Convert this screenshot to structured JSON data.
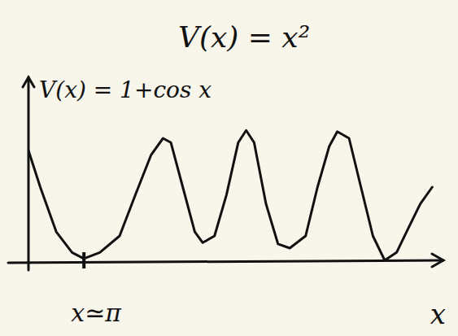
{
  "chart_data": {
    "type": "line",
    "title": "V(x) = x²",
    "y_label": "V(x) = 1+cos x",
    "x_label": "x",
    "x": [
      0,
      0.67,
      1.57,
      2.47,
      3.14,
      4.04,
      5.16,
      6.05,
      6.95,
      7.62,
      8.07,
      8.74,
      9.42,
      9.87,
      10.54,
      11.21,
      11.88,
      12.33,
      12.78,
      13.45,
      14.13,
      14.8,
      15.7,
      16.37,
      17.04,
      17.49,
      18.16,
      18.83,
      19.51,
      20.18,
      20.85,
      21.52,
      22.2,
      22.87
    ],
    "values": [
      1.8,
      1.2,
      0.47,
      0.13,
      0.03,
      0.13,
      0.4,
      1.07,
      1.73,
      2.0,
      1.93,
      1.2,
      0.47,
      0.29,
      0.4,
      1.07,
      1.93,
      2.13,
      1.93,
      0.93,
      0.27,
      0.2,
      0.4,
      1.2,
      1.87,
      2.11,
      2.0,
      1.2,
      0.4,
      0.0,
      0.13,
      0.53,
      0.93,
      1.2
    ],
    "xlim": [
      0,
      23.5
    ],
    "ylim": [
      0,
      3
    ],
    "xticks": [
      {
        "value": 3.14159,
        "label": "x≃π"
      }
    ],
    "tick_labels": "x",
    "grid": false,
    "color": "#111111"
  }
}
